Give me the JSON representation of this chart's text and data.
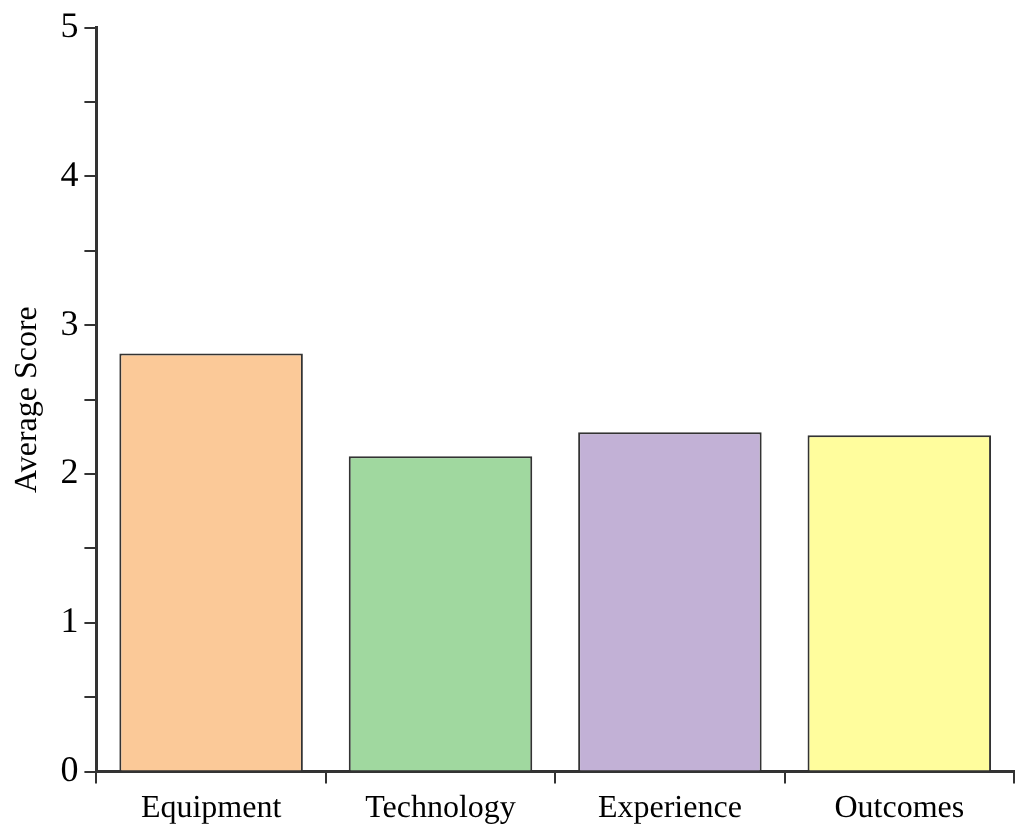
{
  "chart_data": {
    "type": "bar",
    "ylabel": "Average Score",
    "categories": [
      "Equipment",
      "Technology",
      "Experience",
      "Outcomes"
    ],
    "values": [
      2.81,
      2.12,
      2.28,
      2.26
    ],
    "colors": [
      "#fbc998",
      "#a0d89f",
      "#c2b1d6",
      "#fffd9d"
    ],
    "ylim": [
      0,
      5
    ],
    "yticks": [
      0,
      {
        "value": 0.5,
        "label": null
      },
      1,
      {
        "value": 1.5,
        "label": null
      },
      2,
      {
        "value": 2.5,
        "label": null
      },
      3,
      {
        "value": 3.5,
        "label": null
      },
      4,
      {
        "value": 4.5,
        "label": null
      },
      5
    ],
    "grid": false,
    "legend": false
  }
}
